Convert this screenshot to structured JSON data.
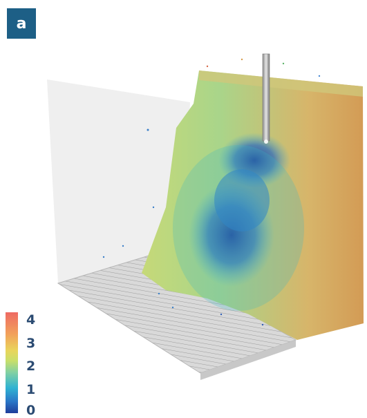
{
  "panel": {
    "label": "a"
  },
  "colorbar": {
    "ticks": [
      "4",
      "3",
      "2",
      "1",
      "0"
    ],
    "colors": [
      "#ee6a63",
      "#f2a25a",
      "#e9d55b",
      "#7fd0a4",
      "#2fb2d2",
      "#1f3d9a"
    ]
  }
}
